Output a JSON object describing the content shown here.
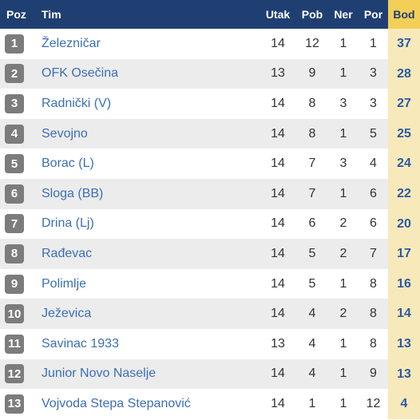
{
  "header": {
    "poz": "Poz",
    "tim": "Tim",
    "utak": "Utak",
    "pob": "Pob",
    "ner": "Ner",
    "por": "Por",
    "bod": "Bod"
  },
  "rows": [
    {
      "pos": "1",
      "team": "Železničar",
      "utak": "14",
      "pob": "12",
      "ner": "1",
      "por": "1",
      "bod": "37"
    },
    {
      "pos": "2",
      "team": "OFK Osečina",
      "utak": "13",
      "pob": "9",
      "ner": "1",
      "por": "3",
      "bod": "28"
    },
    {
      "pos": "3",
      "team": "Radnički (V)",
      "utak": "14",
      "pob": "8",
      "ner": "3",
      "por": "3",
      "bod": "27"
    },
    {
      "pos": "4",
      "team": "Sevojno",
      "utak": "14",
      "pob": "8",
      "ner": "1",
      "por": "5",
      "bod": "25"
    },
    {
      "pos": "5",
      "team": "Borac (L)",
      "utak": "14",
      "pob": "7",
      "ner": "3",
      "por": "4",
      "bod": "24"
    },
    {
      "pos": "6",
      "team": "Sloga (BB)",
      "utak": "14",
      "pob": "7",
      "ner": "1",
      "por": "6",
      "bod": "22"
    },
    {
      "pos": "7",
      "team": "Drina (Lj)",
      "utak": "14",
      "pob": "6",
      "ner": "2",
      "por": "6",
      "bod": "20"
    },
    {
      "pos": "8",
      "team": "Rađevac",
      "utak": "14",
      "pob": "5",
      "ner": "2",
      "por": "7",
      "bod": "17"
    },
    {
      "pos": "9",
      "team": "Polimlje",
      "utak": "14",
      "pob": "5",
      "ner": "1",
      "por": "8",
      "bod": "16"
    },
    {
      "pos": "10",
      "team": "Ježevica",
      "utak": "14",
      "pob": "4",
      "ner": "2",
      "por": "8",
      "bod": "14"
    },
    {
      "pos": "11",
      "team": "Savinac 1933",
      "utak": "13",
      "pob": "4",
      "ner": "1",
      "por": "8",
      "bod": "13"
    },
    {
      "pos": "12",
      "team": "Junior Novo Naselje",
      "utak": "14",
      "pob": "4",
      "ner": "1",
      "por": "9",
      "bod": "13"
    },
    {
      "pos": "13",
      "team": "Vojvoda Stepa Stepanović",
      "utak": "14",
      "pob": "1",
      "ner": "1",
      "por": "12",
      "bod": "4"
    }
  ],
  "colors": {
    "header_bg": "#1f3f72",
    "bod_header_bg": "#f3cf58",
    "bod_cell_bg": "#f8e9bb",
    "team_link": "#3b6fb6",
    "badge_bg": "#7c7c7c"
  }
}
